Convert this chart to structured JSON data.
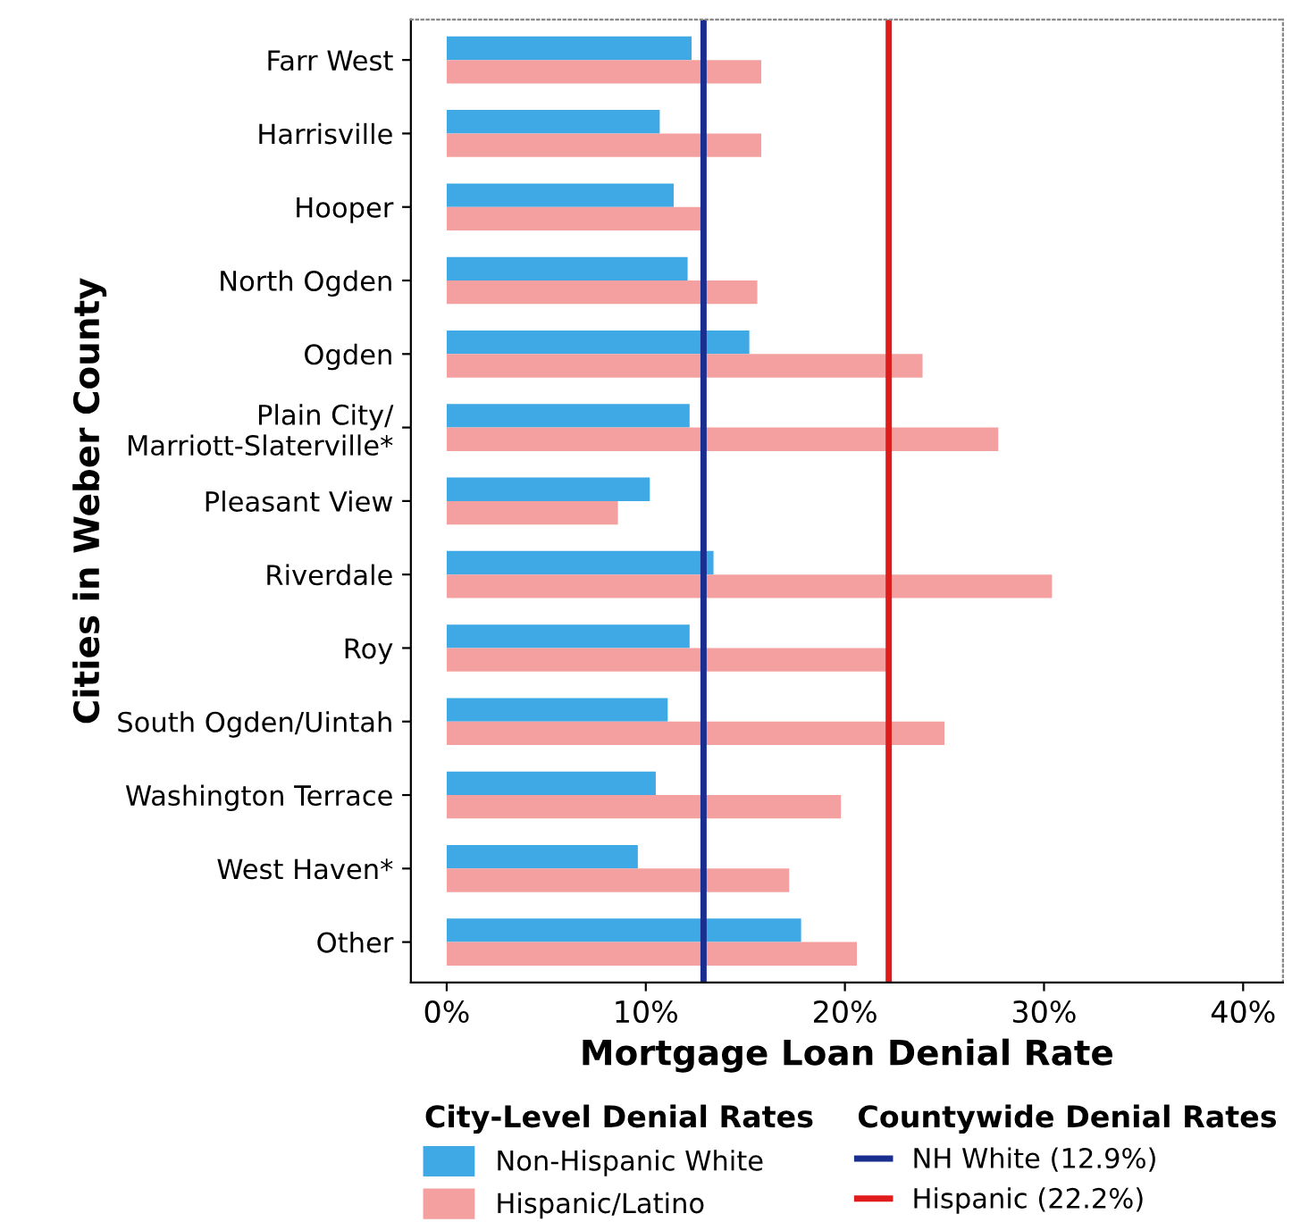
{
  "chart_data": {
    "type": "bar",
    "orientation": "horizontal",
    "xlabel": "Mortgage Loan Denial Rate",
    "ylabel": "Cities in Weber County",
    "legend_title": "City-Level Denial Rates",
    "legend": "bottom",
    "categories": [
      "Farr West",
      "Harrisville",
      "Hooper",
      "North Ogden",
      "Ogden",
      "Plain City/\nMarriott-Slaterville*",
      "Pleasant View",
      "Riverdale",
      "Roy",
      "South Ogden/Uintah",
      "Washington Terrace",
      "West Haven*",
      "Other"
    ],
    "series": [
      {
        "name": "Non-Hispanic White",
        "color": "#3fa9e6",
        "values": [
          12.3,
          10.7,
          11.4,
          12.1,
          15.2,
          12.2,
          10.2,
          13.4,
          12.2,
          11.1,
          10.5,
          9.6,
          17.8
        ]
      },
      {
        "name": "Hispanic/Latino",
        "color": "#f4a0a0",
        "values": [
          15.8,
          15.8,
          12.8,
          15.6,
          23.9,
          27.7,
          8.6,
          30.4,
          22.1,
          25.0,
          19.8,
          17.2,
          20.6
        ]
      }
    ],
    "xlim": [
      -1.8,
      42
    ],
    "xticks": [
      {
        "value": 0,
        "label": "0%"
      },
      {
        "value": 10,
        "label": "10%"
      },
      {
        "value": 20,
        "label": "20%"
      },
      {
        "value": 30,
        "label": "30%"
      },
      {
        "value": 40,
        "label": "40%"
      }
    ],
    "ref_lines": [
      {
        "axis": "x",
        "value": 12.9,
        "label": "NH White (12.9%)",
        "color": "#1a2e8f"
      },
      {
        "axis": "x",
        "value": 22.2,
        "label": "Hispanic (22.2%)",
        "color": "#e01b1b"
      }
    ],
    "annotations": [
      "Countywide Denial Rates"
    ]
  }
}
